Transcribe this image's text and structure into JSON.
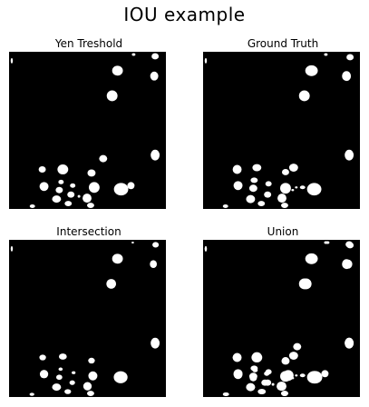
{
  "figure": {
    "title": "IOU example"
  },
  "panels": [
    {
      "title": "Yen Treshold"
    },
    {
      "title": "Ground Truth"
    },
    {
      "title": "Intersection"
    },
    {
      "title": "Union"
    }
  ],
  "colors": {
    "background": "#000000",
    "foreground": "#ffffff"
  }
}
